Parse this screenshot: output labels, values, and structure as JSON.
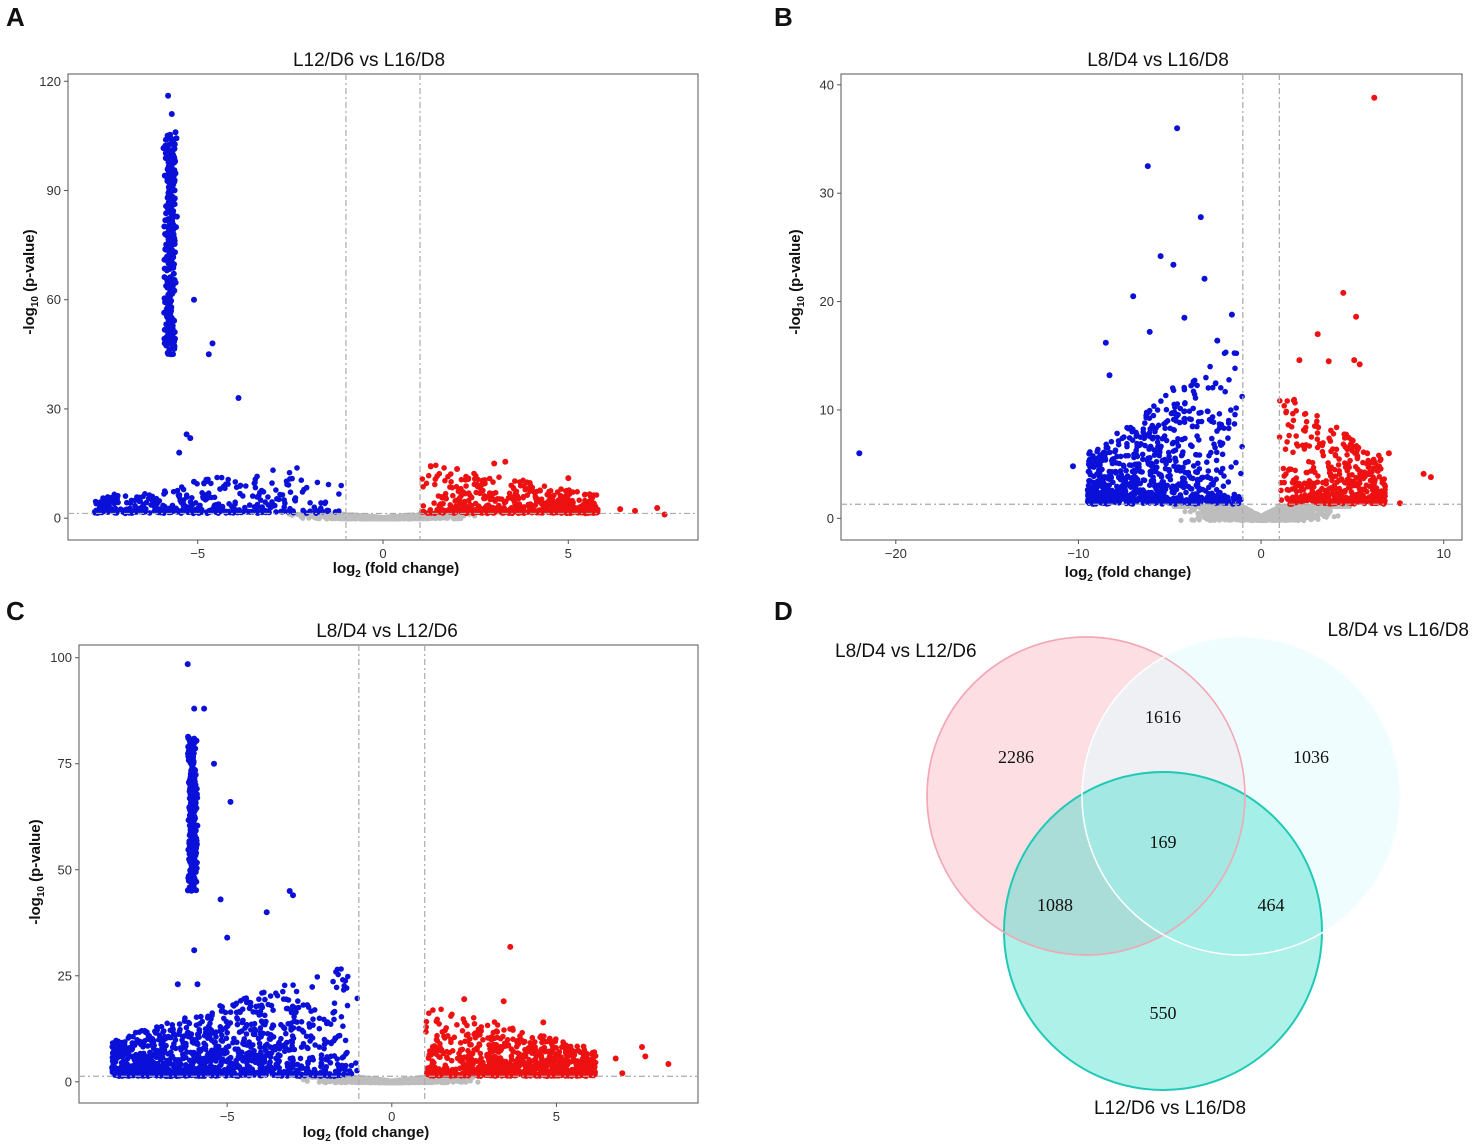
{
  "panel_letters": {
    "a": "A",
    "b": "B",
    "c": "C",
    "d": "D"
  },
  "colors": {
    "down": "#0a10d8",
    "up": "#ee1111",
    "ns": "#bdbdbd",
    "threshold": "#aaaaaa",
    "venn_a": "#fbd3da",
    "venn_a_stroke": "#f3a7b4",
    "venn_b": "#e6fbfd",
    "venn_b_stroke": "#c5f1f5",
    "venn_c": "#33ddc8",
    "venn_c_stroke": "#1fc9b6"
  },
  "chart_data": [
    {
      "id": "A",
      "type": "scatter",
      "title": "L12/D6 vs L16/D8",
      "xlabel_main": "log",
      "xlabel_sub": "2",
      "xlabel_rest": " (fold change)",
      "ylabel_main": "-log",
      "ylabel_sub": "10",
      "ylabel_rest": " (p-value)",
      "xlim": [
        -8.5,
        8.5
      ],
      "ylim": [
        -6,
        122
      ],
      "xticks": [
        -5,
        0,
        5
      ],
      "yticks": [
        0,
        30,
        60,
        90,
        120
      ],
      "fc_threshold": 1,
      "p_threshold": 1.3,
      "down_cluster": {
        "x": -5.75,
        "spread": 0.22,
        "ymin": 45,
        "ymax": 116,
        "count": 320
      },
      "outliers_down": [
        [
          -5.8,
          116
        ],
        [
          -5.7,
          111
        ],
        [
          -5.6,
          106
        ],
        [
          -5.1,
          60
        ],
        [
          -4.6,
          48
        ],
        [
          -4.7,
          45
        ],
        [
          -3.9,
          33
        ],
        [
          -5.3,
          23
        ],
        [
          -5.2,
          22
        ],
        [
          -5.5,
          18
        ],
        [
          -5.1,
          10
        ],
        [
          -5.0,
          2
        ]
      ],
      "outliers_up": [
        [
          3.3,
          15.5
        ],
        [
          3.0,
          15.0
        ],
        [
          2.0,
          13.5
        ],
        [
          5.0,
          11.0
        ],
        [
          6.4,
          2.5
        ],
        [
          6.8,
          2.0
        ],
        [
          7.4,
          2.8
        ],
        [
          7.6,
          1.0
        ]
      ],
      "spread_down": {
        "xmin": -7.8,
        "xmax": -1.0,
        "ymax": 15,
        "count": 380
      },
      "spread_up": {
        "xmin": 1.0,
        "xmax": 5.8,
        "ymax": 14,
        "count": 520
      },
      "ns_count": 1400
    },
    {
      "id": "B",
      "type": "scatter",
      "title": "L8/D4 vs L16/D8",
      "xlabel_main": "log",
      "xlabel_sub": "2",
      "xlabel_rest": " (fold change)",
      "ylabel_main": "-log",
      "ylabel_sub": "10",
      "ylabel_rest": " (p-value)",
      "xlim": [
        -23,
        11
      ],
      "ylim": [
        -2,
        41
      ],
      "xticks": [
        -20,
        -10,
        0,
        10
      ],
      "yticks": [
        0,
        10,
        20,
        30,
        40
      ],
      "fc_threshold": 1,
      "p_threshold": 1.3,
      "outliers_down": [
        [
          -22,
          6
        ],
        [
          -10.3,
          4.8
        ],
        [
          -9.2,
          5.5
        ],
        [
          -8.5,
          16.2
        ],
        [
          -8.3,
          13.2
        ],
        [
          -7.0,
          20.5
        ],
        [
          -6.2,
          32.5
        ],
        [
          -5.5,
          24.2
        ],
        [
          -4.6,
          36
        ],
        [
          -4.8,
          23.4
        ],
        [
          -3.3,
          27.8
        ],
        [
          -3.1,
          22.1
        ],
        [
          -4.2,
          18.5
        ],
        [
          -6.1,
          17.2
        ],
        [
          -2.4,
          16.4
        ],
        [
          -1.6,
          18.8
        ]
      ],
      "outliers_up": [
        [
          6.2,
          38.8
        ],
        [
          4.5,
          20.8
        ],
        [
          5.2,
          18.6
        ],
        [
          3.1,
          17
        ],
        [
          2.1,
          14.6
        ],
        [
          3.7,
          14.5
        ],
        [
          5.1,
          14.6
        ],
        [
          5.4,
          14.2
        ],
        [
          7.0,
          6
        ],
        [
          8.9,
          4.1
        ],
        [
          9.3,
          3.8
        ],
        [
          7.6,
          1.4
        ]
      ],
      "spread_down": {
        "xmin": -9.5,
        "xmax": -1.0,
        "ymax": 15,
        "count": 850
      },
      "spread_up": {
        "xmin": 1.0,
        "xmax": 6.8,
        "ymax": 10.5,
        "count": 480
      },
      "ns_count": 1600
    },
    {
      "id": "C",
      "type": "scatter",
      "title": "L8/D4 vs L12/D6",
      "xlabel_main": "log",
      "xlabel_sub": "2",
      "xlabel_rest": " (fold change)",
      "ylabel_main": "-log",
      "ylabel_sub": "10",
      "ylabel_rest": " (p-value)",
      "xlim": [
        -9.5,
        9.3
      ],
      "ylim": [
        -5,
        103
      ],
      "xticks": [
        -5,
        0,
        5
      ],
      "yticks": [
        0,
        25,
        50,
        75,
        100
      ],
      "fc_threshold": 1,
      "p_threshold": 1.3,
      "down_cluster": {
        "x": -6.05,
        "spread": 0.18,
        "ymin": 45,
        "ymax": 88,
        "count": 320
      },
      "outliers_down": [
        [
          -6.2,
          98.5
        ],
        [
          -6.0,
          88
        ],
        [
          -5.7,
          88
        ],
        [
          -5.4,
          75
        ],
        [
          -4.9,
          66
        ],
        [
          -5.2,
          43
        ],
        [
          -5.0,
          34
        ],
        [
          -6.0,
          31
        ],
        [
          -3.1,
          45
        ],
        [
          -3.0,
          44
        ],
        [
          -3.8,
          40
        ],
        [
          -6.5,
          23
        ],
        [
          -5.9,
          23
        ],
        [
          -8.0,
          6
        ],
        [
          -7.3,
          4
        ]
      ],
      "outliers_up": [
        [
          3.6,
          31.8
        ],
        [
          2.2,
          19.5
        ],
        [
          3.4,
          19
        ],
        [
          4.6,
          14
        ],
        [
          7.6,
          8.2
        ],
        [
          7.7,
          6
        ],
        [
          8.4,
          4.2
        ],
        [
          6.8,
          5.5
        ],
        [
          7.0,
          2.0
        ]
      ],
      "spread_down": {
        "xmin": -8.5,
        "xmax": -1.0,
        "ymax": 27,
        "count": 1300
      },
      "spread_up": {
        "xmin": 1.0,
        "xmax": 6.2,
        "ymax": 17,
        "count": 900
      },
      "ns_count": 1700
    }
  ],
  "venn": {
    "sets": [
      {
        "name": "L8/D4 vs L12/D6"
      },
      {
        "name": "L8/D4 vs L16/D8"
      },
      {
        "name": "L12/D6 vs L16/D8"
      }
    ],
    "counts": {
      "only_a": "2286",
      "only_b": "1036",
      "only_c": "550",
      "a_b": "1616",
      "a_c": "1088",
      "b_c": "464",
      "a_b_c": "169"
    }
  }
}
